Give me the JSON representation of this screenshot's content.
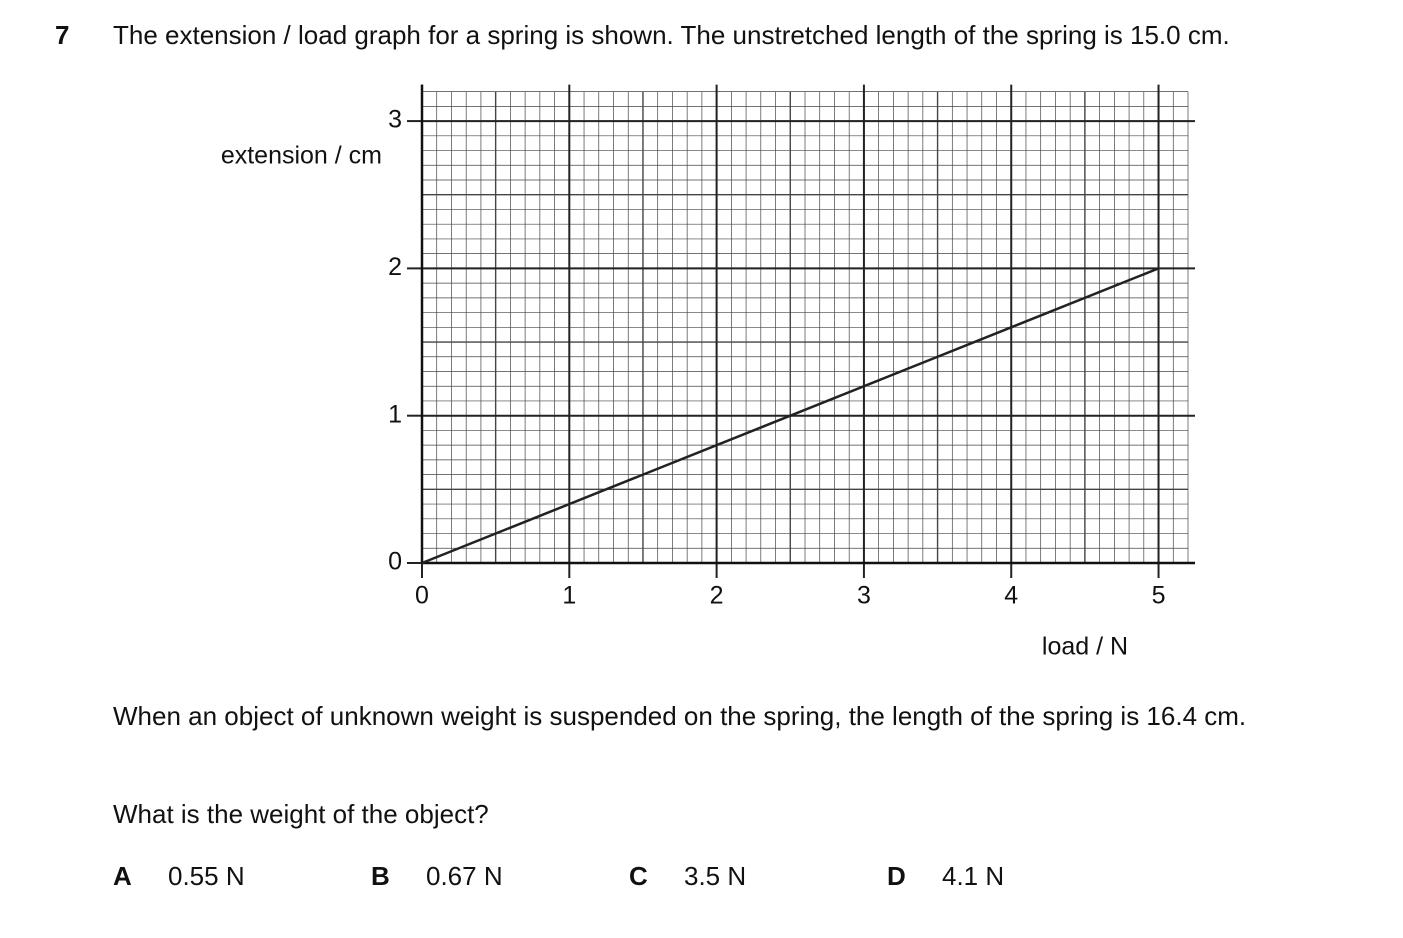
{
  "question": {
    "number": "7",
    "text": "The extension / load graph for a spring is shown. The unstretched length of the spring is 15.0 cm.",
    "follow_up": "When an object of unknown weight is suspended on the spring, the length of the spring is 16.4 cm.",
    "prompt": "What is the weight of the object?",
    "options": [
      {
        "letter": "A",
        "text": "0.55 N"
      },
      {
        "letter": "B",
        "text": "0.67 N"
      },
      {
        "letter": "C",
        "text": "3.5 N"
      },
      {
        "letter": "D",
        "text": "4.1 N"
      }
    ]
  },
  "chart_data": {
    "type": "line",
    "y_label": "extension / cm",
    "x_label": "load / N",
    "x": [
      0,
      5
    ],
    "values": [
      0,
      2
    ],
    "color": "#222222",
    "xlim": [
      0,
      5.2
    ],
    "ylim": [
      0,
      3.2
    ],
    "xticks": [
      0,
      1,
      2,
      3,
      4,
      5
    ],
    "yticks": [
      0,
      1,
      2,
      3
    ],
    "grid": true
  }
}
